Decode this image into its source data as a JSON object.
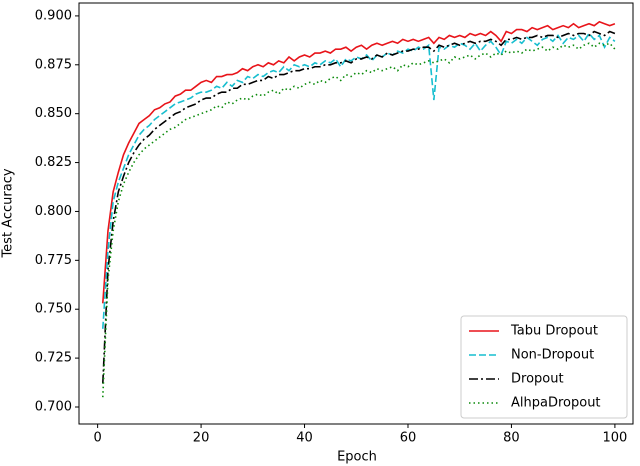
{
  "chart_data": {
    "type": "line",
    "x_label": "Epoch",
    "y_label": "Test Accuracy",
    "x": [
      1,
      2,
      3,
      4,
      5,
      6,
      7,
      8,
      9,
      10,
      11,
      12,
      13,
      14,
      15,
      16,
      17,
      18,
      19,
      20,
      21,
      22,
      23,
      24,
      25,
      26,
      27,
      28,
      29,
      30,
      31,
      32,
      33,
      34,
      35,
      36,
      37,
      38,
      39,
      40,
      41,
      42,
      43,
      44,
      45,
      46,
      47,
      48,
      49,
      50,
      51,
      52,
      53,
      54,
      55,
      56,
      57,
      58,
      59,
      60,
      61,
      62,
      63,
      64,
      65,
      66,
      67,
      68,
      69,
      70,
      71,
      72,
      73,
      74,
      75,
      76,
      77,
      78,
      79,
      80,
      81,
      82,
      83,
      84,
      85,
      86,
      87,
      88,
      89,
      90,
      91,
      92,
      93,
      94,
      95,
      96,
      97,
      98,
      99,
      100
    ],
    "series": [
      {
        "name": "Tabu Dropout",
        "color": "#e8141a",
        "linestyle": "solid",
        "values": [
          0.753,
          0.79,
          0.81,
          0.82,
          0.829,
          0.835,
          0.84,
          0.845,
          0.847,
          0.849,
          0.852,
          0.853,
          0.855,
          0.856,
          0.859,
          0.86,
          0.862,
          0.862,
          0.864,
          0.866,
          0.867,
          0.866,
          0.869,
          0.869,
          0.87,
          0.87,
          0.871,
          0.873,
          0.872,
          0.874,
          0.875,
          0.874,
          0.876,
          0.875,
          0.877,
          0.876,
          0.879,
          0.877,
          0.879,
          0.88,
          0.879,
          0.881,
          0.881,
          0.882,
          0.881,
          0.883,
          0.883,
          0.884,
          0.882,
          0.884,
          0.885,
          0.883,
          0.885,
          0.886,
          0.885,
          0.886,
          0.887,
          0.886,
          0.888,
          0.887,
          0.888,
          0.887,
          0.888,
          0.889,
          0.886,
          0.889,
          0.888,
          0.89,
          0.889,
          0.89,
          0.889,
          0.891,
          0.89,
          0.891,
          0.89,
          0.892,
          0.89,
          0.887,
          0.892,
          0.891,
          0.893,
          0.893,
          0.892,
          0.894,
          0.893,
          0.894,
          0.895,
          0.893,
          0.894,
          0.895,
          0.894,
          0.896,
          0.894,
          0.895,
          0.896,
          0.895,
          0.897,
          0.896,
          0.895,
          0.896
        ]
      },
      {
        "name": "Non-Dropout",
        "color": "#17becf",
        "linestyle": "dashed",
        "values": [
          0.74,
          0.78,
          0.805,
          0.815,
          0.822,
          0.829,
          0.834,
          0.839,
          0.842,
          0.844,
          0.847,
          0.849,
          0.851,
          0.853,
          0.855,
          0.856,
          0.857,
          0.858,
          0.86,
          0.861,
          0.861,
          0.862,
          0.864,
          0.863,
          0.866,
          0.864,
          0.867,
          0.866,
          0.869,
          0.868,
          0.87,
          0.869,
          0.871,
          0.872,
          0.871,
          0.874,
          0.872,
          0.875,
          0.874,
          0.875,
          0.874,
          0.876,
          0.875,
          0.877,
          0.876,
          0.878,
          0.874,
          0.878,
          0.877,
          0.879,
          0.878,
          0.88,
          0.877,
          0.88,
          0.879,
          0.881,
          0.88,
          0.882,
          0.881,
          0.883,
          0.882,
          0.884,
          0.883,
          0.885,
          0.857,
          0.884,
          0.883,
          0.885,
          0.884,
          0.886,
          0.885,
          0.883,
          0.886,
          0.882,
          0.885,
          0.887,
          0.884,
          0.88,
          0.887,
          0.886,
          0.888,
          0.886,
          0.889,
          0.887,
          0.885,
          0.888,
          0.889,
          0.887,
          0.89,
          0.886,
          0.889,
          0.888,
          0.89,
          0.887,
          0.891,
          0.888,
          0.89,
          0.884,
          0.889,
          0.887
        ]
      },
      {
        "name": "Dropout",
        "color": "#000000",
        "linestyle": "dashdot",
        "values": [
          0.712,
          0.77,
          0.795,
          0.81,
          0.818,
          0.825,
          0.83,
          0.834,
          0.837,
          0.839,
          0.842,
          0.844,
          0.846,
          0.848,
          0.85,
          0.851,
          0.853,
          0.854,
          0.855,
          0.857,
          0.858,
          0.858,
          0.86,
          0.861,
          0.861,
          0.863,
          0.863,
          0.865,
          0.865,
          0.866,
          0.867,
          0.867,
          0.869,
          0.868,
          0.87,
          0.87,
          0.871,
          0.872,
          0.872,
          0.873,
          0.873,
          0.874,
          0.874,
          0.875,
          0.875,
          0.876,
          0.876,
          0.877,
          0.876,
          0.878,
          0.878,
          0.879,
          0.878,
          0.88,
          0.879,
          0.881,
          0.88,
          0.881,
          0.882,
          0.882,
          0.883,
          0.883,
          0.884,
          0.884,
          0.882,
          0.885,
          0.884,
          0.885,
          0.886,
          0.885,
          0.886,
          0.887,
          0.886,
          0.887,
          0.887,
          0.888,
          0.887,
          0.885,
          0.888,
          0.888,
          0.889,
          0.888,
          0.889,
          0.889,
          0.89,
          0.889,
          0.89,
          0.89,
          0.889,
          0.89,
          0.891,
          0.89,
          0.891,
          0.891,
          0.89,
          0.892,
          0.891,
          0.89,
          0.892,
          0.891
        ]
      },
      {
        "name": "AlhpaDropout",
        "color": "#0a8a0a",
        "linestyle": "dotted",
        "values": [
          0.705,
          0.765,
          0.79,
          0.805,
          0.814,
          0.82,
          0.825,
          0.829,
          0.832,
          0.834,
          0.836,
          0.838,
          0.84,
          0.842,
          0.843,
          0.845,
          0.847,
          0.848,
          0.849,
          0.85,
          0.851,
          0.852,
          0.854,
          0.853,
          0.856,
          0.855,
          0.857,
          0.858,
          0.857,
          0.859,
          0.86,
          0.859,
          0.861,
          0.862,
          0.86,
          0.863,
          0.862,
          0.864,
          0.863,
          0.865,
          0.866,
          0.865,
          0.867,
          0.866,
          0.868,
          0.869,
          0.867,
          0.87,
          0.869,
          0.871,
          0.87,
          0.872,
          0.871,
          0.873,
          0.872,
          0.873,
          0.874,
          0.872,
          0.875,
          0.874,
          0.876,
          0.875,
          0.876,
          0.877,
          0.876,
          0.877,
          0.878,
          0.876,
          0.879,
          0.878,
          0.879,
          0.88,
          0.878,
          0.88,
          0.881,
          0.879,
          0.881,
          0.88,
          0.882,
          0.881,
          0.882,
          0.881,
          0.883,
          0.882,
          0.883,
          0.884,
          0.882,
          0.884,
          0.883,
          0.885,
          0.884,
          0.885,
          0.883,
          0.885,
          0.886,
          0.884,
          0.886,
          0.885,
          0.886,
          0.883
        ]
      }
    ],
    "xlim": [
      -3.6,
      103.5
    ],
    "xticks": [
      0,
      20,
      40,
      60,
      80,
      100
    ],
    "ylim": [
      0.6913,
      0.9066
    ],
    "yticks": [
      {
        "value": 0.7,
        "label": "0.700"
      },
      0.725,
      {
        "value": 0.75,
        "label": "0.750"
      },
      0.775,
      {
        "value": 0.8,
        "label": "0.800"
      },
      0.825,
      {
        "value": 0.85,
        "label": "0.850"
      },
      0.875,
      {
        "value": 0.9,
        "label": "0.900"
      }
    ],
    "grid": false,
    "legend": "lower right"
  }
}
